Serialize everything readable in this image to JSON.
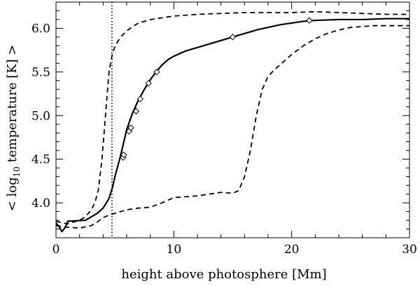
{
  "chart_data": {
    "type": "line",
    "title": "",
    "xlabel": "height above photosphere [Mm]",
    "ylabel_prefix": "< log",
    "ylabel_sub": "10",
    "ylabel_suffix": " temperature [K] >",
    "xlim": [
      0,
      30
    ],
    "ylim": [
      3.6,
      6.3
    ],
    "xticks": [
      0,
      10,
      20,
      30
    ],
    "yticks": [
      4.0,
      4.5,
      5.0,
      5.5,
      6.0
    ],
    "ytick_labels": [
      "4.0",
      "4.5",
      "5.0",
      "5.5",
      "6.0"
    ],
    "grid": false,
    "vline_x": 4.75,
    "series": [
      {
        "style": "solid",
        "x": [
          0,
          0.3,
          0.5,
          0.8,
          1.0,
          2.5,
          3.5,
          4.0,
          4.5,
          4.8,
          5.0,
          5.5,
          6.0,
          6.5,
          7.0,
          7.5,
          8.0,
          8.5,
          9.0,
          9.5,
          10.0,
          11.0,
          12.0,
          13.0,
          14.0,
          15.0,
          16.0,
          17.0,
          18.0,
          19.0,
          20.0,
          21.0,
          22.0,
          24.0,
          26.0,
          28.0,
          30.0
        ],
        "y": [
          3.77,
          3.72,
          3.67,
          3.72,
          3.79,
          3.8,
          3.88,
          3.94,
          4.05,
          4.18,
          4.3,
          4.55,
          4.84,
          5.03,
          5.18,
          5.3,
          5.41,
          5.5,
          5.58,
          5.64,
          5.68,
          5.74,
          5.78,
          5.82,
          5.86,
          5.9,
          5.94,
          5.98,
          6.01,
          6.04,
          6.06,
          6.08,
          6.09,
          6.1,
          6.1,
          6.11,
          6.11
        ]
      },
      {
        "style": "dashed",
        "x": [
          0,
          0.5,
          1.0,
          1.5,
          2.0,
          2.5,
          3.0,
          3.3,
          3.6,
          3.9,
          4.2,
          4.5,
          4.8,
          5.1,
          5.4,
          5.7,
          6.0,
          6.5,
          7.0,
          8.0,
          9.0,
          10.0,
          12.0,
          14.0,
          16.0,
          18.0,
          20.0,
          22.0,
          24.0,
          26.0,
          28.0,
          30.0
        ],
        "y": [
          3.79,
          3.77,
          3.76,
          3.78,
          3.8,
          3.84,
          3.92,
          4.0,
          4.15,
          4.5,
          5.0,
          5.5,
          5.72,
          5.82,
          5.88,
          5.93,
          5.97,
          6.02,
          6.06,
          6.1,
          6.12,
          6.14,
          6.16,
          6.17,
          6.18,
          6.18,
          6.18,
          6.19,
          6.18,
          6.17,
          6.16,
          6.16
        ]
      },
      {
        "style": "dashed",
        "x": [
          0,
          1.0,
          2.0,
          3.0,
          3.5,
          4.0,
          4.5,
          5.0,
          5.5,
          6.0,
          7.0,
          8.0,
          9.0,
          10.0,
          11.0,
          12.0,
          13.0,
          14.0,
          15.0,
          15.5,
          16.0,
          16.5,
          17.0,
          17.5,
          18.0,
          18.5,
          19.0,
          20.0,
          21.0,
          22.0,
          23.0,
          24.0,
          25.0,
          26.0,
          27.0,
          28.0,
          30.0
        ],
        "y": [
          3.74,
          3.72,
          3.71,
          3.74,
          3.78,
          3.83,
          3.86,
          3.88,
          3.9,
          3.92,
          3.94,
          3.95,
          4.0,
          4.06,
          4.07,
          4.08,
          4.1,
          4.12,
          4.11,
          4.14,
          4.3,
          4.6,
          5.0,
          5.3,
          5.45,
          5.52,
          5.58,
          5.7,
          5.8,
          5.88,
          5.94,
          5.98,
          6.01,
          6.02,
          6.03,
          6.03,
          6.03
        ]
      }
    ],
    "markers": {
      "shape": "diamond",
      "x": [
        5.7,
        5.75,
        6.2,
        6.35,
        6.8,
        7.15,
        7.85,
        8.55,
        15.0,
        21.5
      ],
      "y": [
        4.52,
        4.55,
        4.82,
        4.86,
        5.05,
        5.19,
        5.37,
        5.5,
        5.9,
        6.09
      ]
    }
  }
}
